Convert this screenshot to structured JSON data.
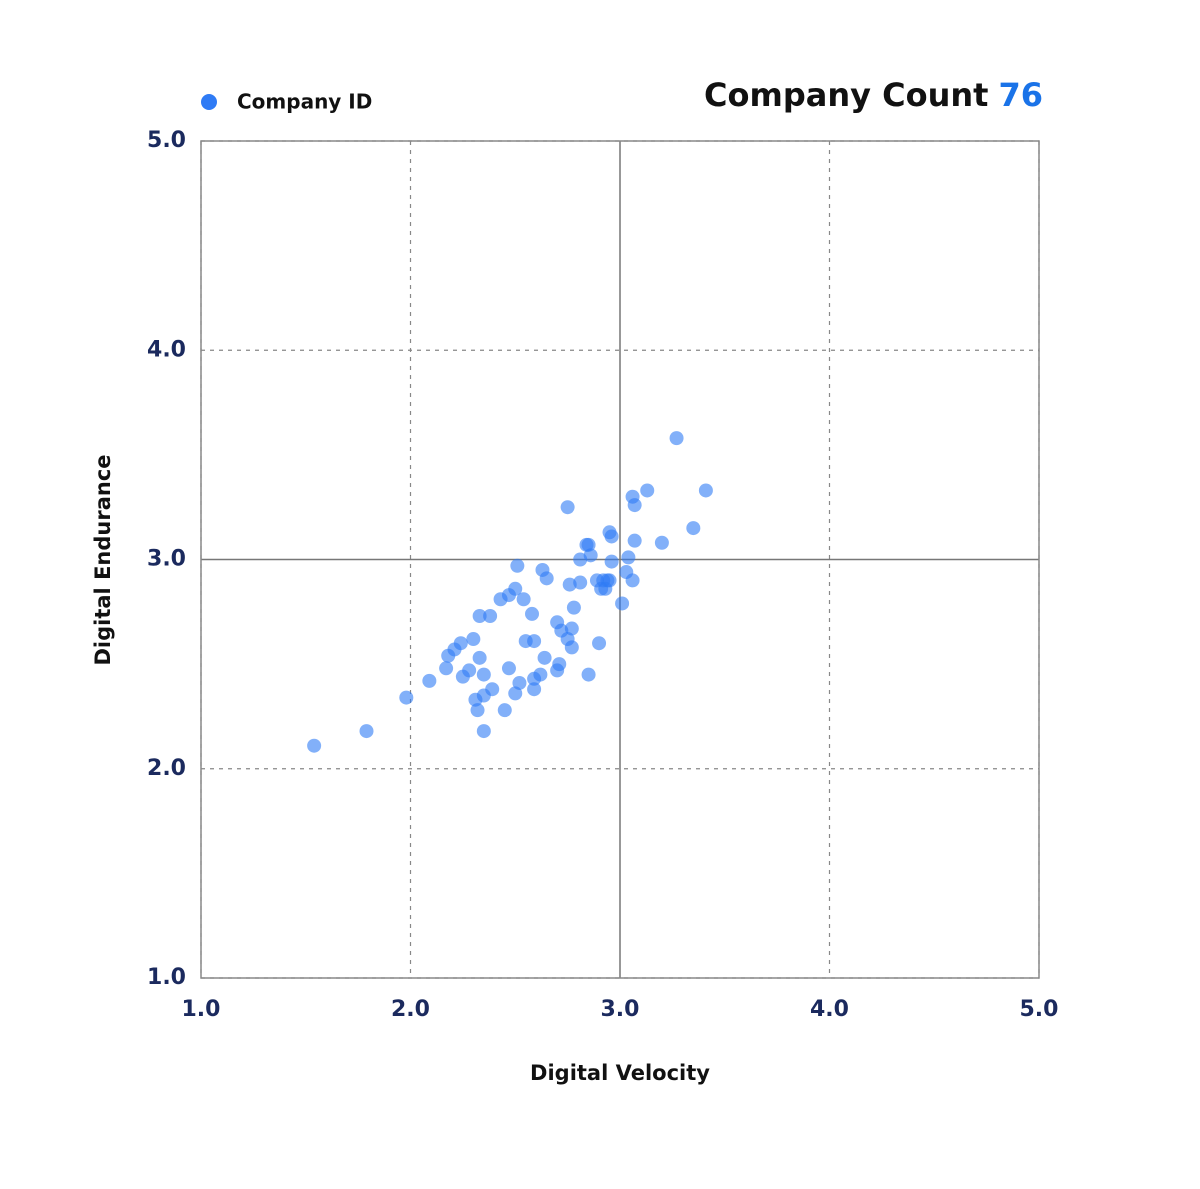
{
  "chart_data": {
    "type": "scatter",
    "title": "Company Count",
    "count": 76,
    "x_label": "Digital Velocity",
    "y_label": "Digital Endurance",
    "xlim": [
      1,
      5
    ],
    "ylim": [
      1,
      5
    ],
    "xticks": [
      {
        "value": 1,
        "label": "1.0"
      },
      {
        "value": 2,
        "label": "2.0"
      },
      {
        "value": 3,
        "label": "3.0"
      },
      {
        "value": 4,
        "label": "4.0"
      },
      {
        "value": 5,
        "label": "5.0"
      }
    ],
    "yticks": [
      {
        "value": 1,
        "label": "1.0"
      },
      {
        "value": 2,
        "label": "2.0"
      },
      {
        "value": 3,
        "label": "3.0"
      },
      {
        "value": 4,
        "label": "4.0"
      },
      {
        "value": 5,
        "label": "5.0"
      }
    ],
    "grid": true,
    "series": [
      {
        "name": "Company ID",
        "color": "#2f7bf5",
        "x": [
          1.54,
          1.79,
          1.98,
          2.09,
          2.17,
          2.18,
          2.21,
          2.24,
          2.25,
          2.28,
          2.3,
          2.31,
          2.32,
          2.33,
          2.33,
          2.35,
          2.35,
          2.35,
          2.38,
          2.39,
          2.43,
          2.45,
          2.47,
          2.47,
          2.5,
          2.5,
          2.51,
          2.52,
          2.54,
          2.55,
          2.58,
          2.59,
          2.59,
          2.59,
          2.62,
          2.63,
          2.64,
          2.65,
          2.7,
          2.7,
          2.71,
          2.72,
          2.75,
          2.75,
          2.76,
          2.77,
          2.77,
          2.78,
          2.81,
          2.81,
          2.84,
          2.85,
          2.85,
          2.86,
          2.89,
          2.9,
          2.91,
          2.92,
          2.93,
          2.94,
          2.95,
          2.96,
          2.96,
          2.95,
          3.01,
          3.03,
          3.04,
          3.06,
          3.06,
          3.07,
          3.07,
          3.13,
          3.2,
          3.27,
          3.35,
          3.41
        ],
        "values": [
          2.11,
          2.18,
          2.34,
          2.42,
          2.48,
          2.54,
          2.57,
          2.6,
          2.44,
          2.47,
          2.62,
          2.33,
          2.28,
          2.53,
          2.73,
          2.45,
          2.35,
          2.18,
          2.73,
          2.38,
          2.81,
          2.28,
          2.83,
          2.48,
          2.86,
          2.36,
          2.97,
          2.41,
          2.81,
          2.61,
          2.74,
          2.43,
          2.38,
          2.61,
          2.45,
          2.95,
          2.53,
          2.91,
          2.7,
          2.47,
          2.5,
          2.66,
          3.25,
          2.62,
          2.88,
          2.58,
          2.67,
          2.77,
          3.0,
          2.89,
          3.07,
          3.07,
          2.45,
          3.02,
          2.9,
          2.6,
          2.86,
          2.9,
          2.86,
          2.9,
          3.13,
          2.99,
          3.11,
          2.9,
          2.79,
          2.94,
          3.01,
          3.3,
          2.9,
          3.26,
          3.09,
          3.33,
          3.08,
          3.58,
          3.15,
          3.33
        ]
      }
    ]
  }
}
